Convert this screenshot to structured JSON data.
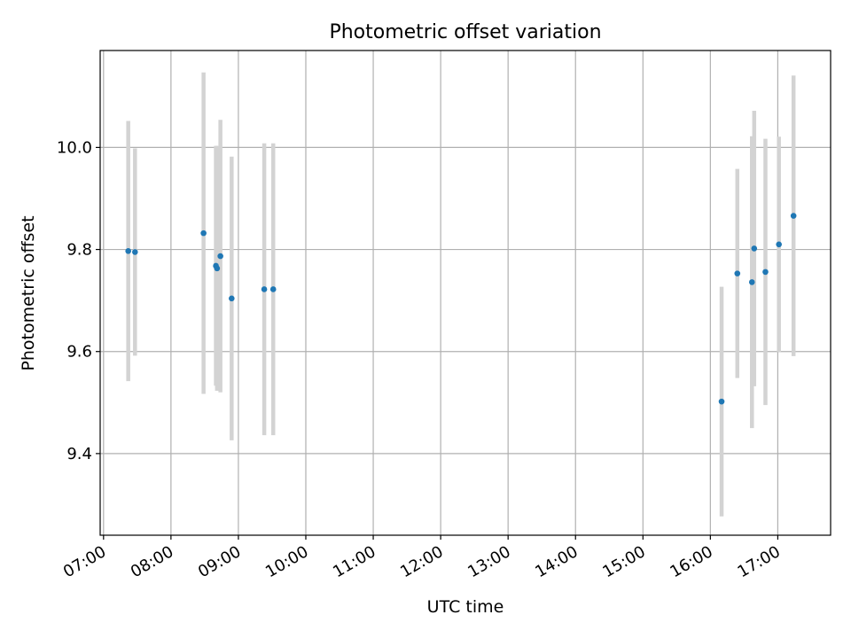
{
  "chart_data": {
    "type": "scatter",
    "title": "Photometric offset variation",
    "xlabel": "UTC time",
    "ylabel": "Photometric offset",
    "x_ticks": [
      "07:00",
      "08:00",
      "09:00",
      "10:00",
      "11:00",
      "12:00",
      "13:00",
      "14:00",
      "15:00",
      "16:00",
      "17:00"
    ],
    "x_tick_hours": [
      7,
      8,
      9,
      10,
      11,
      12,
      13,
      14,
      15,
      16,
      17
    ],
    "y_ticks": [
      9.4,
      9.6,
      9.8,
      10.0
    ],
    "y_tick_labels": [
      "9.4",
      "9.6",
      "9.8",
      "10.0"
    ],
    "xlim": [
      "06:57",
      "17:47"
    ],
    "ylim": [
      9.24,
      10.19
    ],
    "grid": true,
    "point_color": "#1f77b4",
    "errorbar_color": "#d3d3d3",
    "points": [
      {
        "time": "07:22",
        "y": 9.797,
        "err": 0.255
      },
      {
        "time": "07:28",
        "y": 9.795,
        "err": 0.203
      },
      {
        "time": "08:29",
        "y": 9.832,
        "err": 0.315
      },
      {
        "time": "08:40",
        "y": 9.768,
        "err": 0.235
      },
      {
        "time": "08:41",
        "y": 9.763,
        "err": 0.24
      },
      {
        "time": "08:44",
        "y": 9.787,
        "err": 0.267
      },
      {
        "time": "08:54",
        "y": 9.704,
        "err": 0.278
      },
      {
        "time": "09:23",
        "y": 9.722,
        "err": 0.286
      },
      {
        "time": "09:31",
        "y": 9.722,
        "err": 0.286
      },
      {
        "time": "16:10",
        "y": 9.502,
        "err": 0.225
      },
      {
        "time": "16:24",
        "y": 9.753,
        "err": 0.205
      },
      {
        "time": "16:37",
        "y": 9.736,
        "err": 0.286
      },
      {
        "time": "16:39",
        "y": 9.802,
        "err": 0.27
      },
      {
        "time": "16:49",
        "y": 9.756,
        "err": 0.261
      },
      {
        "time": "17:01",
        "y": 9.81,
        "err": 0.211
      },
      {
        "time": "17:14",
        "y": 9.866,
        "err": 0.275
      }
    ]
  }
}
